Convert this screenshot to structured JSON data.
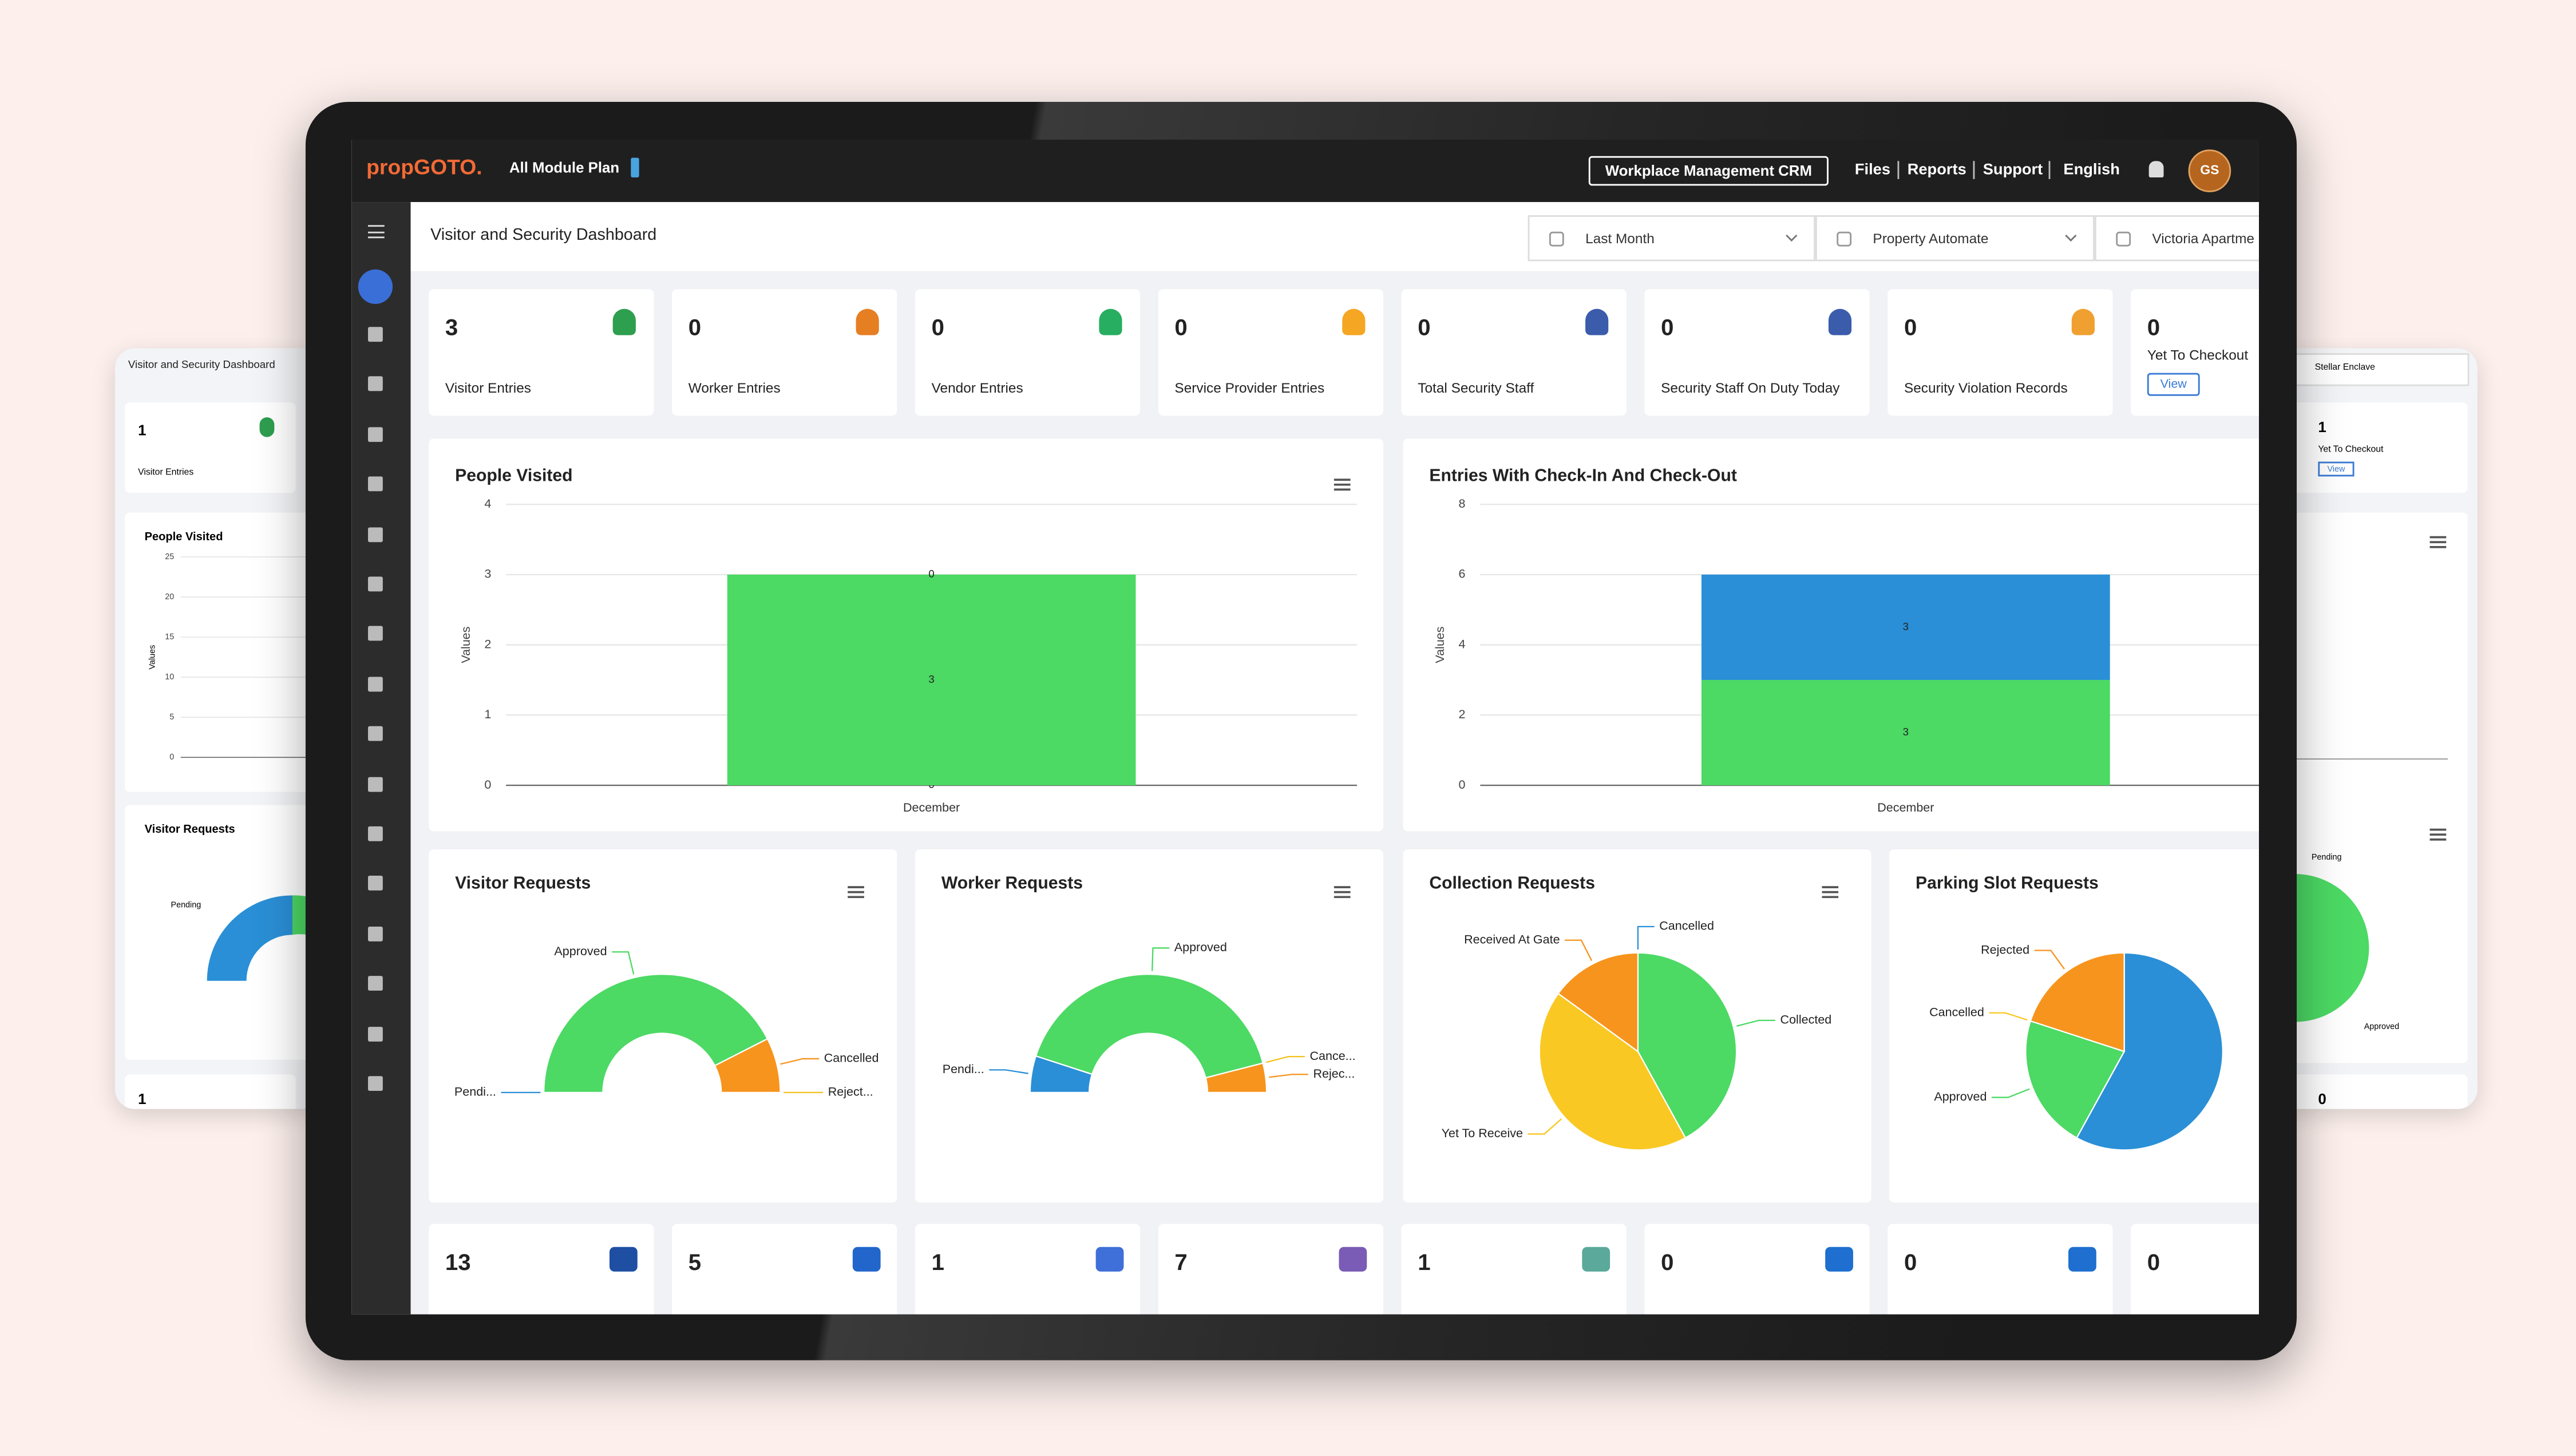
{
  "header": {
    "logo": "propGOTO.",
    "plan": "All Module Plan",
    "crm_button": "Workplace Management CRM",
    "nav": [
      "Files",
      "Reports",
      "Support",
      "English"
    ],
    "avatar": "GS"
  },
  "dashboard": {
    "title": "Visitor and Security Dashboard",
    "filters": [
      "Last Month",
      "Property Automate",
      "Victoria Apartme"
    ],
    "kpis": [
      {
        "value": 3,
        "label": "Visitor Entries"
      },
      {
        "value": 0,
        "label": "Worker Entries"
      },
      {
        "value": 0,
        "label": "Vendor Entries"
      },
      {
        "value": 0,
        "label": "Service Provider Entries"
      },
      {
        "value": 0,
        "label": "Total Security Staff"
      },
      {
        "value": 0,
        "label": "Security Staff On Duty Today"
      },
      {
        "value": 0,
        "label": "Security Violation Records"
      },
      {
        "value": 0,
        "label": "Yet To Checkout",
        "button": "View"
      }
    ],
    "charts": [
      {
        "type": "bar",
        "title": "People Visited",
        "y_label": "Values",
        "categories": [
          "December"
        ],
        "stacked": true,
        "grid": true,
        "ylim": [
          0,
          4
        ],
        "yticks": [
          0,
          1,
          2,
          3,
          4
        ],
        "series": [
          {
            "color": "#4cd964",
            "values": [
              0
            ]
          },
          {
            "color": "#4cd964",
            "values": [
              3
            ]
          },
          {
            "color": "#4cd964",
            "values": [
              0
            ]
          }
        ]
      },
      {
        "type": "bar",
        "title": "Entries With Check-In And Check-Out",
        "y_label": "Values",
        "categories": [
          "December"
        ],
        "stacked": true,
        "grid": true,
        "ylim": [
          0,
          8
        ],
        "yticks": [
          0,
          2,
          4,
          6,
          8
        ],
        "series": [
          {
            "color": "#4cd964",
            "values": [
              3
            ]
          },
          {
            "color": "#2a8fd6",
            "values": [
              3
            ]
          }
        ]
      },
      {
        "type": "donut",
        "title": "Visitor Requests",
        "categories": [
          "Pendi...",
          "Approved",
          "Cancelled",
          "Reject..."
        ],
        "values": [
          0,
          85,
          15,
          0
        ],
        "colors": [
          "#2a8fd6",
          "#4cd964",
          "#f7941d",
          "#f4c21f"
        ]
      },
      {
        "type": "donut",
        "title": "Worker Requests",
        "categories": [
          "Pendi...",
          "Approved",
          "Cance...",
          "Rejec..."
        ],
        "values": [
          10,
          82,
          0,
          8
        ],
        "colors": [
          "#2a8fd6",
          "#4cd964",
          "#f4c21f",
          "#f7941d"
        ]
      },
      {
        "type": "pie",
        "title": "Collection Requests",
        "categories": [
          "Cancelled",
          "Collected",
          "Yet To Receive",
          "Received At Gate"
        ],
        "values": [
          0,
          42,
          43,
          15
        ],
        "colors": [
          "#2a8fd6",
          "#4cd964",
          "#f9c823",
          "#f7941d"
        ]
      },
      {
        "type": "pie",
        "title": "Parking Slot Requests",
        "categories": [
          null,
          "Approved",
          "Cancelled",
          "Rejected"
        ],
        "values": [
          58,
          22,
          0,
          20
        ],
        "colors": [
          "#2a8fd6",
          "#4cd964",
          "#f9c823",
          "#f7941d"
        ]
      }
    ],
    "bottom_kpis": [
      13,
      5,
      1,
      7,
      1,
      0,
      0,
      0
    ]
  },
  "left_preview": {
    "title": "Visitor and Security Dashboard",
    "kpi": {
      "value": 1,
      "label": "Visitor Entries"
    },
    "chart_title": "People Visited",
    "y_label": "Values",
    "yticks": [
      0,
      5,
      10,
      15,
      20,
      25
    ],
    "donut_title": "Visitor Requests",
    "donut_label": "Pending",
    "bottom_value": 1
  },
  "right_preview": {
    "filter": "Stellar Enclave",
    "kpi": {
      "value": 1,
      "label": "Yet To Checkout",
      "button": "View"
    },
    "pie_labels": [
      "Pending",
      "Approved"
    ],
    "bottom_value": 0
  }
}
